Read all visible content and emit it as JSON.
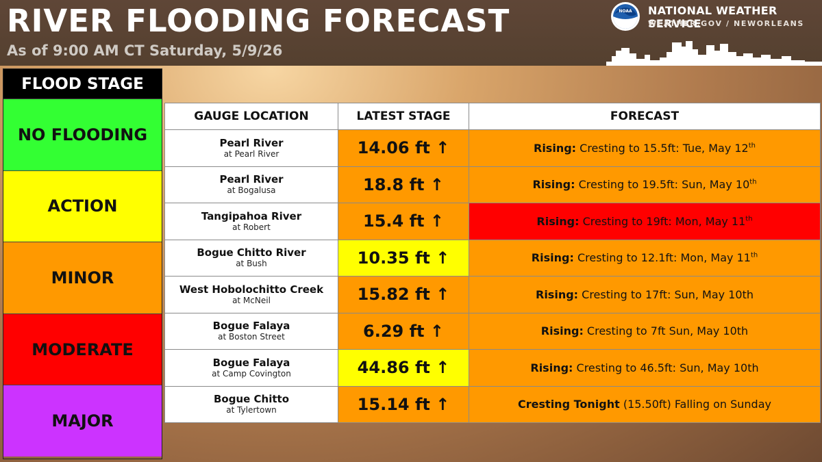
{
  "header": {
    "title": "RIVER FLOODING FORECAST",
    "subtitle": "As of 9:00 AM CT Saturday, 5/9/26",
    "logo_text": "NOAA",
    "org_name": "NATIONAL WEATHER SERVICE",
    "org_url": "WEATHER.GOV / NEWORLEANS",
    "logo_icon": "noaa-logo-icon"
  },
  "legend": {
    "title": "FLOOD STAGE",
    "items": [
      {
        "label": "NO FLOODING",
        "color": "#33ff33"
      },
      {
        "label": "ACTION",
        "color": "#ffff00"
      },
      {
        "label": "MINOR",
        "color": "#ff9900"
      },
      {
        "label": "MODERATE",
        "color": "#ff0000"
      },
      {
        "label": "MAJOR",
        "color": "#cc33ff"
      }
    ]
  },
  "table": {
    "headers": [
      "GAUGE LOCATION",
      "LATEST STAGE",
      "FORECAST"
    ],
    "arrow_icon": "up-arrow-icon",
    "rows": [
      {
        "river": "Pearl River",
        "at": "at Pearl River",
        "stage": "14.06 ft",
        "arrow": "↑",
        "stage_color": "#ff9900",
        "fc_bold": "Rising:",
        "fc_text": " Cresting to 15.5ft: Tue, May 12",
        "fc_sup": "th",
        "fc_color": "#ff9900"
      },
      {
        "river": "Pearl River",
        "at": "at Bogalusa",
        "stage": "18.8 ft",
        "arrow": "↑",
        "stage_color": "#ff9900",
        "fc_bold": "Rising:",
        "fc_text": " Cresting to 19.5ft: Sun, May 10",
        "fc_sup": "th",
        "fc_color": "#ff9900"
      },
      {
        "river": "Tangipahoa River",
        "at": "at Robert",
        "stage": "15.4 ft",
        "arrow": "↑",
        "stage_color": "#ff9900",
        "fc_bold": "Rising:",
        "fc_text": " Cresting to 19ft: Mon, May 11",
        "fc_sup": "th",
        "fc_color": "#ff0000"
      },
      {
        "river": "Bogue Chitto River",
        "at": "at Bush",
        "stage": "10.35 ft",
        "arrow": "↑",
        "stage_color": "#ffff00",
        "fc_bold": "Rising:",
        "fc_text": " Cresting to 12.1ft: Mon, May 11",
        "fc_sup": "th",
        "fc_color": "#ff9900"
      },
      {
        "river": "West Hobolochitto Creek",
        "at": "at McNeil",
        "stage": "15.82 ft",
        "arrow": "↑",
        "stage_color": "#ff9900",
        "fc_bold": "Rising:",
        "fc_text": " Cresting to 17ft: Sun, May 10th",
        "fc_sup": "",
        "fc_color": "#ff9900"
      },
      {
        "river": "Bogue Falaya",
        "at": "at Boston Street",
        "stage": "6.29 ft",
        "arrow": "↑",
        "stage_color": "#ff9900",
        "fc_bold": "Rising:",
        "fc_text": " Cresting to 7ft Sun, May 10th",
        "fc_sup": "",
        "fc_color": "#ff9900"
      },
      {
        "river": "Bogue Falaya",
        "at": "at Camp Covington",
        "stage": "44.86 ft",
        "arrow": "↑",
        "stage_color": "#ffff00",
        "fc_bold": "Rising:",
        "fc_text": " Cresting to 46.5ft: Sun, May 10th",
        "fc_sup": "",
        "fc_color": "#ff9900"
      },
      {
        "river": "Bogue Chitto",
        "at": "at Tylertown",
        "stage": "15.14 ft",
        "arrow": "↑",
        "stage_color": "#ff9900",
        "fc_bold": "Cresting Tonight",
        "fc_text": " (15.50ft) Falling on Sunday",
        "fc_sup": "",
        "fc_color": "#ff9900"
      }
    ]
  }
}
